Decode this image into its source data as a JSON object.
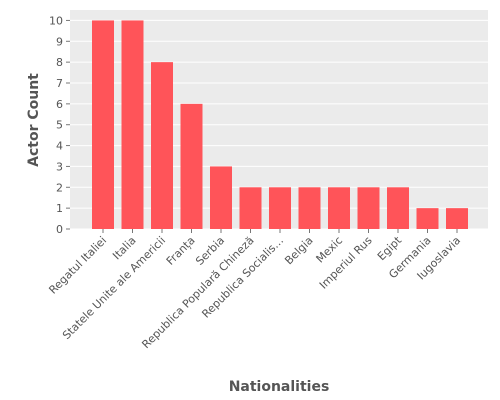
{
  "colors": {
    "bar": "#ff5459",
    "plot_background": "#ebebeb",
    "grid": "#ffffff",
    "text": "#555555"
  },
  "chart_data": {
    "type": "bar",
    "xlabel": "Nationalities",
    "ylabel": "Actor Count",
    "categories": [
      "Regatul Italiei",
      "Italia",
      "Statele Unite ale Americii",
      "Franța",
      "Serbia",
      "Republica Populară Chineză",
      "Republica Socialis…",
      "Belgia",
      "Mexic",
      "Imperiul Rus",
      "Egipt",
      "Germania",
      "Iugoslavia"
    ],
    "values": [
      10,
      10,
      8,
      6,
      3,
      2,
      2,
      2,
      2,
      2,
      2,
      1,
      1
    ],
    "ylim": [
      0,
      10.5
    ],
    "yticks": [
      0,
      1,
      2,
      3,
      4,
      5,
      6,
      7,
      8,
      9,
      10
    ],
    "grid": true,
    "legend": "none"
  }
}
